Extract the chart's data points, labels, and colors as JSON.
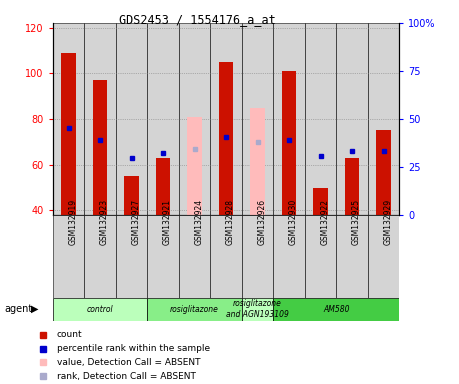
{
  "title": "GDS2453 / 1554176_a_at",
  "samples": [
    "GSM132919",
    "GSM132923",
    "GSM132927",
    "GSM132921",
    "GSM132924",
    "GSM132928",
    "GSM132926",
    "GSM132930",
    "GSM132922",
    "GSM132925",
    "GSM132929"
  ],
  "red_values": [
    109,
    97,
    55,
    63,
    null,
    105,
    null,
    101,
    50,
    63,
    75
  ],
  "pink_values": [
    null,
    null,
    null,
    null,
    81,
    null,
    85,
    null,
    null,
    null,
    null
  ],
  "blue_squares": [
    76,
    71,
    63,
    65,
    67,
    72,
    null,
    71,
    64,
    66,
    66
  ],
  "lavender_squares": [
    null,
    null,
    null,
    null,
    67,
    null,
    70,
    null,
    null,
    null,
    null
  ],
  "absent_detection": [
    false,
    false,
    false,
    false,
    true,
    false,
    true,
    false,
    false,
    false,
    false
  ],
  "groups": [
    {
      "label": "control",
      "start": 0,
      "end": 2,
      "color": "#bbffbb"
    },
    {
      "label": "rosiglitazone",
      "start": 3,
      "end": 5,
      "color": "#88ee88"
    },
    {
      "label": "rosiglitazone\nand AGN193109",
      "start": 6,
      "end": 6,
      "color": "#bbffbb"
    },
    {
      "label": "AM580",
      "start": 7,
      "end": 10,
      "color": "#44cc44"
    }
  ],
  "ylim_left": [
    38,
    122
  ],
  "ylim_right": [
    0,
    100
  ],
  "left_ticks": [
    40,
    60,
    80,
    100,
    120
  ],
  "right_ticks": [
    0,
    25,
    50,
    75,
    100
  ],
  "right_tick_labels": [
    "0",
    "25",
    "50",
    "75",
    "100%"
  ],
  "red_color": "#cc1100",
  "pink_color": "#ffbbbb",
  "blue_color": "#0000cc",
  "lavender_color": "#aaaacc",
  "col_bg_color": "#d4d4d4",
  "agent_label": "agent",
  "legend_items": [
    {
      "color": "#cc1100",
      "label": "count"
    },
    {
      "color": "#0000cc",
      "label": "percentile rank within the sample"
    },
    {
      "color": "#ffbbbb",
      "label": "value, Detection Call = ABSENT"
    },
    {
      "color": "#aaaacc",
      "label": "rank, Detection Call = ABSENT"
    }
  ]
}
